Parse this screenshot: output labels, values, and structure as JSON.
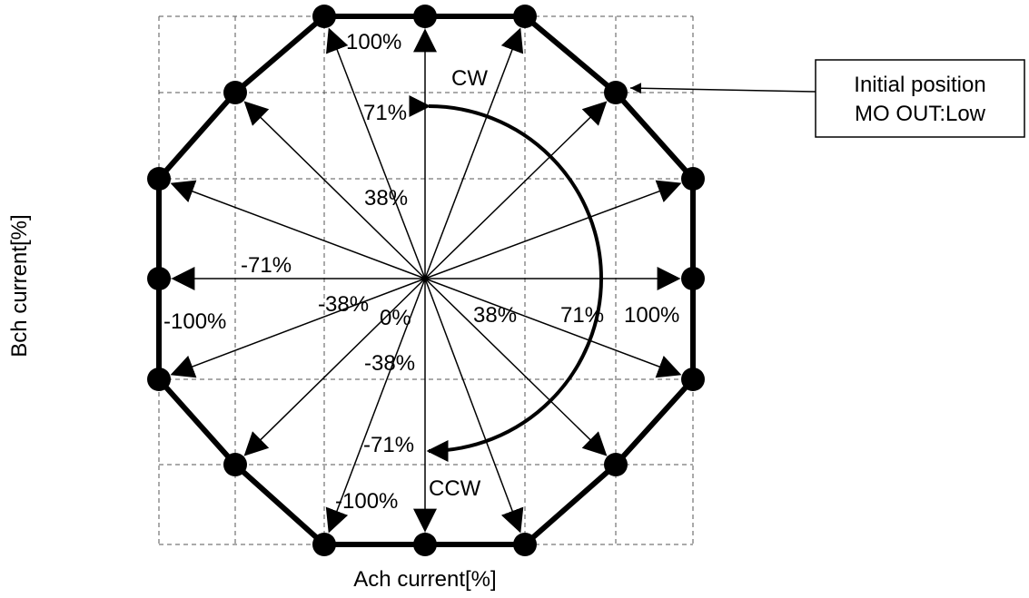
{
  "axes": {
    "x_title": "Ach current[%]",
    "y_title": "Bch current[%]"
  },
  "x_tick_labels": {
    "neg100": "-100%",
    "neg71": "-71%",
    "neg38": "-38%",
    "zero": "0%",
    "pos38": "38%",
    "pos71": "71%",
    "pos100": "100%"
  },
  "y_tick_labels": {
    "pos100": "100%",
    "pos71": "71%",
    "pos38": "38%",
    "neg38": "-38%",
    "neg71": "-71%",
    "neg100": "-100%"
  },
  "direction_labels": {
    "cw": "CW",
    "ccw": "CCW"
  },
  "callout": {
    "line1": "Initial position",
    "line2": "MO OUT:Low"
  },
  "chart_data": {
    "type": "scatter",
    "description_points": "current vector positions (Ach, Bch) for 16 microstep positions",
    "points": [
      {
        "a": 100,
        "b": 0
      },
      {
        "a": 100,
        "b": -38
      },
      {
        "a": 71,
        "b": -71
      },
      {
        "a": 38,
        "b": -100
      },
      {
        "a": 0,
        "b": -100
      },
      {
        "a": -38,
        "b": -100
      },
      {
        "a": -71,
        "b": -71
      },
      {
        "a": -100,
        "b": -38
      },
      {
        "a": -100,
        "b": 0
      },
      {
        "a": -100,
        "b": 38
      },
      {
        "a": -71,
        "b": 71
      },
      {
        "a": -38,
        "b": 100
      },
      {
        "a": 0,
        "b": 100
      },
      {
        "a": 38,
        "b": 100
      },
      {
        "a": 71,
        "b": 71
      },
      {
        "a": 100,
        "b": 38
      }
    ],
    "initial_point_index": 14,
    "xlim": [
      -100,
      100
    ],
    "ylim": [
      -100,
      100
    ],
    "grid_values": [
      -100,
      -71,
      -38,
      0,
      38,
      71,
      100
    ]
  }
}
